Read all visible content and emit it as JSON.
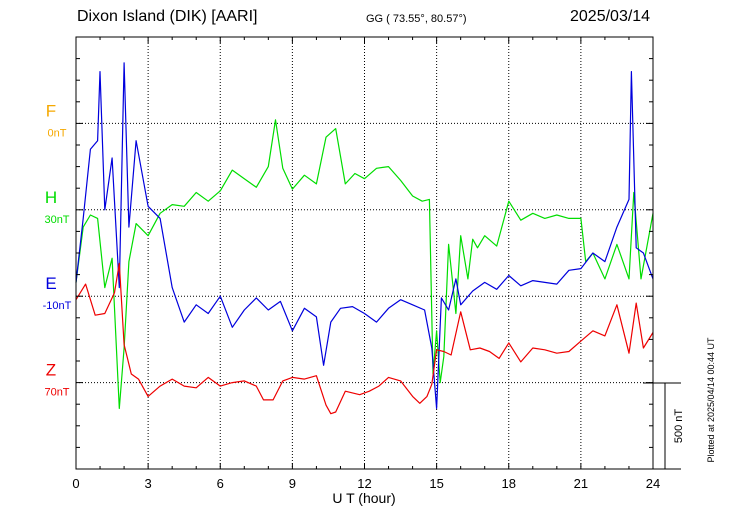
{
  "header": {
    "station": "Dixon Island (DIK)  [AARI]",
    "coords": "GG ( 73.55°,  80.57°)",
    "date": "2025/03/14"
  },
  "plot_note": "Plotted at 2025/04/14 00:44 UT",
  "scale_label": "500 nT",
  "colors": {
    "F": "#f5a800",
    "H": "#00dd00",
    "E": "#0000dd",
    "Z": "#ee0000"
  },
  "chart_data": {
    "type": "line",
    "xlabel": "U T (hour)",
    "xlim": [
      0,
      24
    ],
    "xticks": [
      "0",
      "3",
      "6",
      "9",
      "12",
      "15",
      "18",
      "21",
      "24"
    ],
    "scale_nT_per_division": 500,
    "channels": [
      {
        "name": "F",
        "baseline_label": "0nT"
      },
      {
        "name": "H",
        "baseline_label": "30nT"
      },
      {
        "name": "E",
        "baseline_label": "-10nT"
      },
      {
        "name": "Z",
        "baseline_label": "70nT"
      }
    ],
    "series": [
      {
        "name": "H",
        "unit": "nT",
        "x": [
          0,
          0.3,
          0.6,
          0.9,
          1.2,
          1.5,
          1.8,
          2.0,
          2.2,
          2.5,
          3,
          3.5,
          4,
          4.5,
          5,
          5.5,
          6,
          6.5,
          7,
          7.5,
          8,
          8.3,
          8.6,
          9,
          9.5,
          10,
          10.4,
          10.8,
          11.2,
          11.6,
          12,
          12.5,
          13,
          13.5,
          14,
          14.4,
          14.7,
          14.85,
          15.0,
          15.15,
          15.3,
          15.5,
          15.8,
          16,
          16.3,
          16.5,
          16.7,
          17,
          17.5,
          18,
          18.5,
          19,
          19.5,
          20,
          20.5,
          21,
          21.2,
          21.5,
          22,
          22.5,
          23,
          23.2,
          23.5,
          24
        ],
        "y": [
          -420,
          -100,
          -30,
          -50,
          -450,
          -280,
          -1150,
          -800,
          -300,
          -80,
          -150,
          -20,
          30,
          20,
          100,
          50,
          110,
          230,
          180,
          130,
          250,
          520,
          240,
          120,
          200,
          150,
          420,
          470,
          150,
          210,
          180,
          240,
          250,
          170,
          80,
          50,
          60,
          -950,
          -700,
          -1000,
          -850,
          -200,
          -600,
          -150,
          -400,
          -170,
          -220,
          -150,
          -210,
          50,
          -60,
          -20,
          -50,
          -30,
          -50,
          -50,
          -300,
          -250,
          -400,
          -200,
          -400,
          100,
          -400,
          -20
        ]
      },
      {
        "name": "E",
        "unit": "nT",
        "x": [
          0,
          0.3,
          0.6,
          0.9,
          1.0,
          1.2,
          1.5,
          1.8,
          2.0,
          2.2,
          2.5,
          3,
          3.5,
          4,
          4.5,
          5,
          5.5,
          6,
          6.5,
          7,
          7.5,
          8,
          8.5,
          9,
          9.5,
          10,
          10.3,
          10.6,
          11,
          11.5,
          12,
          12.5,
          13,
          13.5,
          14,
          14.5,
          14.8,
          15.0,
          15.2,
          15.5,
          15.8,
          16,
          16.5,
          17,
          17.5,
          18,
          18.5,
          19,
          19.5,
          20,
          20.5,
          21,
          21.5,
          22,
          22.5,
          23,
          23.1,
          23.3,
          23.6,
          24
        ],
        "y": [
          80,
          450,
          850,
          900,
          1300,
          500,
          800,
          50,
          1350,
          400,
          900,
          520,
          450,
          50,
          -150,
          -50,
          -100,
          0,
          -180,
          -80,
          -10,
          -80,
          -30,
          -200,
          -70,
          -120,
          -400,
          -150,
          -70,
          -60,
          -100,
          -150,
          -70,
          -20,
          -50,
          -80,
          -300,
          -650,
          -10,
          -80,
          100,
          -50,
          30,
          80,
          40,
          120,
          60,
          90,
          80,
          70,
          150,
          160,
          250,
          200,
          400,
          560,
          1300,
          280,
          250,
          100
        ]
      },
      {
        "name": "Z",
        "unit": "nT",
        "x": [
          0,
          0.4,
          0.8,
          1.2,
          1.6,
          1.8,
          2.0,
          2.3,
          2.6,
          3,
          3.5,
          4,
          4.5,
          5,
          5.5,
          6,
          6.5,
          7,
          7.5,
          7.8,
          8.2,
          8.6,
          9,
          9.5,
          10,
          10.4,
          10.6,
          10.8,
          11.2,
          11.8,
          12.2,
          12.6,
          13,
          13.5,
          14,
          14.3,
          14.6,
          14.8,
          15.0,
          15.3,
          15.6,
          16,
          16.4,
          16.8,
          17.2,
          17.6,
          18,
          18.5,
          19,
          19.5,
          20,
          20.5,
          21,
          21.5,
          22,
          22.5,
          23,
          23.3,
          23.6,
          24
        ],
        "y": [
          480,
          570,
          390,
          400,
          520,
          690,
          220,
          50,
          20,
          -80,
          -20,
          20,
          -20,
          -30,
          30,
          -20,
          0,
          10,
          -20,
          -100,
          -100,
          10,
          30,
          20,
          40,
          -130,
          -180,
          -170,
          -50,
          -70,
          -50,
          -20,
          30,
          10,
          -80,
          -120,
          -80,
          -10,
          190,
          180,
          160,
          410,
          190,
          200,
          180,
          140,
          230,
          120,
          200,
          190,
          170,
          180,
          240,
          300,
          270,
          450,
          170,
          460,
          200,
          290
        ]
      }
    ]
  }
}
